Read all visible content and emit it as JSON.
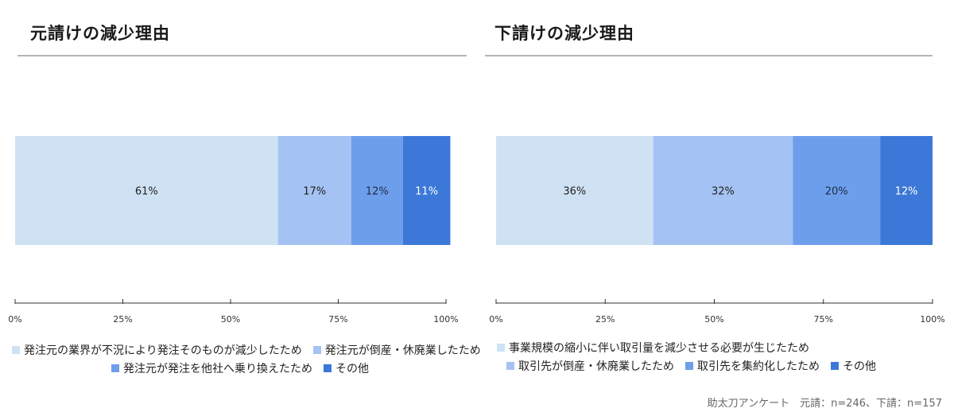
{
  "chart_data": [
    {
      "type": "bar",
      "orientation": "horizontal-stacked-100",
      "title": "元請けの減少理由",
      "xlim": [
        0,
        100
      ],
      "xticks": [
        "0%",
        "25%",
        "50%",
        "75%",
        "100%"
      ],
      "grid": false,
      "legend_position": "bottom",
      "series": [
        {
          "name": "発注元の業界が不況により発注そのものが減少したため",
          "value": 61,
          "label": "61%",
          "color": "#cfe2f3"
        },
        {
          "name": "発注元が倒産・休廃業したため",
          "value": 17,
          "label": "17%",
          "color": "#a4c2f4"
        },
        {
          "name": "発注元が発注を他社へ乗り換えたため",
          "value": 12,
          "label": "12%",
          "color": "#6d9eeb"
        },
        {
          "name": "その他",
          "value": 11,
          "label": "11%",
          "color": "#3c78d8"
        }
      ]
    },
    {
      "type": "bar",
      "orientation": "horizontal-stacked-100",
      "title": "下請けの減少理由",
      "xlim": [
        0,
        100
      ],
      "xticks": [
        "0%",
        "25%",
        "50%",
        "75%",
        "100%"
      ],
      "grid": false,
      "legend_position": "bottom",
      "series": [
        {
          "name": "事業規模の縮小に伴い取引量を減少させる必要が生じたため",
          "value": 36,
          "label": "36%",
          "color": "#cfe2f3"
        },
        {
          "name": "取引先が倒産・休廃業したため",
          "value": 32,
          "label": "32%",
          "color": "#a4c2f4"
        },
        {
          "name": "取引先を集約化したため",
          "value": 20,
          "label": "20%",
          "color": "#6d9eeb"
        },
        {
          "name": "その他",
          "value": 12,
          "label": "12%",
          "color": "#3c78d8"
        }
      ]
    }
  ],
  "footer": {
    "source": "助太刀アンケート　元請：n=246、下請：n=157"
  }
}
